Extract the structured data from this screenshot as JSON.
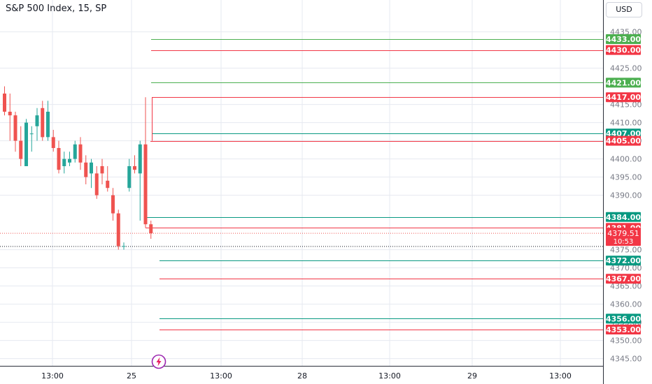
{
  "header": {
    "title": "S&P 500 Index, 15, SP",
    "currency_button": "USD"
  },
  "event_marker": {
    "icon": "lightning-icon"
  },
  "colors": {
    "up": "#26a69a",
    "down": "#ef5350",
    "support_green": "#4caf50",
    "support_teal": "#089981",
    "resistance_red": "#f23645",
    "grid": "#e6e9f0",
    "axis_text": "#787b86"
  },
  "chart_data": {
    "type": "candlestick",
    "title": "S&P 500 Index, 15, SP",
    "symbol": "S&P 500 Index",
    "interval": "15",
    "exchange": "SP",
    "currency": "USD",
    "ylim": [
      4342,
      4438
    ],
    "y_ticks": [
      4345,
      4350,
      4355,
      4360,
      4365,
      4370,
      4375,
      4390,
      4395,
      4400,
      4405,
      4410,
      4415,
      4425,
      4435
    ],
    "x_tick_labels": [
      "13:00",
      "25",
      "13:00",
      "28",
      "13:00",
      "29",
      "13:00"
    ],
    "candles": [
      {
        "o": 4418,
        "h": 4420,
        "l": 4412,
        "c": 4413
      },
      {
        "o": 4413,
        "h": 4418,
        "l": 4405,
        "c": 4412
      },
      {
        "o": 4412,
        "h": 4413,
        "l": 4402,
        "c": 4405
      },
      {
        "o": 4405,
        "h": 4409,
        "l": 4398,
        "c": 4400
      },
      {
        "o": 4398,
        "h": 4411,
        "l": 4398,
        "c": 4410
      },
      {
        "o": 4407,
        "h": 4409,
        "l": 4402,
        "c": 4407
      },
      {
        "o": 4409,
        "h": 4414,
        "l": 4405,
        "c": 4412
      },
      {
        "o": 4414,
        "h": 4416,
        "l": 4405,
        "c": 4406
      },
      {
        "o": 4406,
        "h": 4416,
        "l": 4405,
        "c": 4413
      },
      {
        "o": 4406,
        "h": 4408,
        "l": 4402,
        "c": 4403
      },
      {
        "o": 4403,
        "h": 4405,
        "l": 4396,
        "c": 4397
      },
      {
        "o": 4398,
        "h": 4402,
        "l": 4396,
        "c": 4400
      },
      {
        "o": 4399,
        "h": 4402,
        "l": 4398,
        "c": 4400
      },
      {
        "o": 4400,
        "h": 4405,
        "l": 4399,
        "c": 4404
      },
      {
        "o": 4404,
        "h": 4406,
        "l": 4397,
        "c": 4399
      },
      {
        "o": 4399,
        "h": 4401,
        "l": 4393,
        "c": 4395
      },
      {
        "o": 4396,
        "h": 4400,
        "l": 4392,
        "c": 4399
      },
      {
        "o": 4396,
        "h": 4398,
        "l": 4389,
        "c": 4390
      },
      {
        "o": 4398,
        "h": 4400,
        "l": 4393,
        "c": 4396
      },
      {
        "o": 4394,
        "h": 4398,
        "l": 4391,
        "c": 4392
      },
      {
        "o": 4390,
        "h": 4392,
        "l": 4383,
        "c": 4385
      },
      {
        "o": 4385,
        "h": 4386,
        "l": 4375,
        "c": 4376
      },
      {
        "o": 4376,
        "h": 4377,
        "l": 4375,
        "c": 4376
      },
      {
        "o": 4392,
        "h": 4400,
        "l": 4391,
        "c": 4398
      },
      {
        "o": 4398,
        "h": 4401,
        "l": 4396,
        "c": 4397
      },
      {
        "o": 4396,
        "h": 4405,
        "l": 4383,
        "c": 4404
      },
      {
        "o": 4404,
        "h": 4417,
        "l": 4381,
        "c": 4382
      },
      {
        "o": 4382,
        "h": 4383,
        "l": 4378,
        "c": 4379.51
      }
    ],
    "levels": [
      {
        "price": 4433,
        "label": "4433.00",
        "color": "green"
      },
      {
        "price": 4430,
        "label": "4430.00",
        "color": "red"
      },
      {
        "price": 4421,
        "label": "4421.00",
        "color": "green"
      },
      {
        "price": 4417,
        "label": "4417.00",
        "color": "red"
      },
      {
        "price": 4407,
        "label": "4407.00",
        "color": "teal"
      },
      {
        "price": 4405,
        "label": "4405.00",
        "color": "red"
      },
      {
        "price": 4384,
        "label": "4384.00",
        "color": "teal"
      },
      {
        "price": 4381,
        "label": "4381.00",
        "color": "red"
      },
      {
        "price": 4372,
        "label": "4372.00",
        "color": "teal"
      },
      {
        "price": 4367,
        "label": "4367.00",
        "color": "red"
      },
      {
        "price": 4356,
        "label": "4356.00",
        "color": "teal"
      },
      {
        "price": 4353,
        "label": "4353.00",
        "color": "red"
      }
    ],
    "last_price": {
      "value": 4379.51,
      "label": "4379.51",
      "countdown": "10:53"
    },
    "grid": true
  }
}
